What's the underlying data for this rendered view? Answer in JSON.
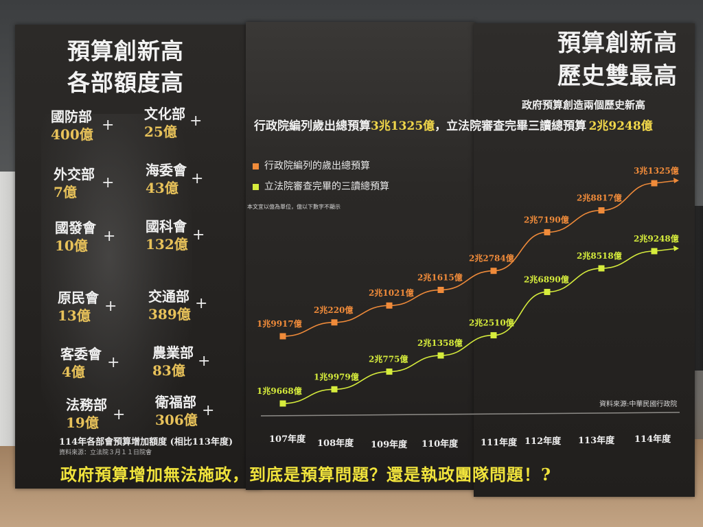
{
  "left": {
    "title_line1": "預算創新高",
    "title_line2": "各部額度高",
    "departments": [
      {
        "name": "國防部",
        "amount": "400億"
      },
      {
        "name": "文化部",
        "amount": "25億"
      },
      {
        "name": "外交部",
        "amount": "7億"
      },
      {
        "name": "海委會",
        "amount": "43億"
      },
      {
        "name": "國發會",
        "amount": "10億"
      },
      {
        "name": "國科會",
        "amount": "132億"
      },
      {
        "name": "原民會",
        "amount": "13億"
      },
      {
        "name": "交通部",
        "amount": "389億"
      },
      {
        "name": "客委會",
        "amount": "4億"
      },
      {
        "name": "農業部",
        "amount": "83億"
      },
      {
        "name": "法務部",
        "amount": "19億"
      },
      {
        "name": "衛福部",
        "amount": "306億"
      }
    ],
    "plus_symbol": "+",
    "caption": "114年各部會預算增加額度 (相比113年度)",
    "source": "資料來源：立法院３月１１日院會"
  },
  "right": {
    "title_line1": "預算創新高",
    "title_line2": "歷史雙最高",
    "subtitle": "政府預算創造兩個歷史新高",
    "headline_part1": "行政院編列歲出總預算",
    "headline_value1": "3兆1325億",
    "headline_part2": "，立法院審查完畢三讀總預算",
    "headline_value2": "2兆9248億",
    "legend_item1": "行政院編列的歲出總預算",
    "legend_item2": "立法院審查完畢的三讀總預算",
    "note": "本文宜以億為單位，億以下數字不顯示",
    "source": "資料來源:中華民國行政院"
  },
  "bottom_slogan": "政府預算增加無法施政，到底是預算問題？還是執政團隊問題！?",
  "colors": {
    "orange": "#f08b3a",
    "yellow_green": "#d6ec3c",
    "amount_gold": "#e8c25a",
    "slogan_yellow": "#f1e43c"
  },
  "chart_data": {
    "type": "line",
    "x": [
      "107年度",
      "108年度",
      "109年度",
      "110年度",
      "111年度",
      "112年度",
      "113年度",
      "114年度"
    ],
    "y_unit": "億",
    "series": [
      {
        "name": "行政院編列的歲出總預算",
        "values": [
          19917,
          20220,
          21021,
          21615,
          22784,
          27190,
          28817,
          31325
        ],
        "labels": [
          "1兆9917億",
          "2兆220億",
          "2兆1021億",
          "2兆1615億",
          "2兆2784億",
          "2兆7190億",
          "2兆8817億",
          "3兆1325億"
        ],
        "color": "#f08b3a"
      },
      {
        "name": "立法院審查完畢的三讀總預算",
        "values": [
          19668,
          19979,
          20775,
          21358,
          22510,
          26890,
          28518,
          29248
        ],
        "labels": [
          "1兆9668億",
          "1兆9979億",
          "2兆775億",
          "2兆1358億",
          "2兆2510億",
          "2兆6890億",
          "2兆8518億",
          "2兆9248億"
        ],
        "color": "#d6ec3c"
      }
    ]
  }
}
